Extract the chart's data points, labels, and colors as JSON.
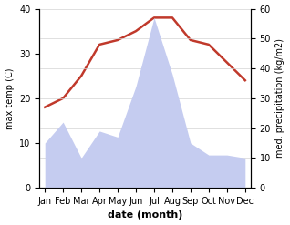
{
  "months": [
    "Jan",
    "Feb",
    "Mar",
    "Apr",
    "May",
    "Jun",
    "Jul",
    "Aug",
    "Sep",
    "Oct",
    "Nov",
    "Dec"
  ],
  "temperature": [
    18,
    20,
    25,
    32,
    33,
    35,
    38,
    38,
    33,
    32,
    28,
    24
  ],
  "precipitation": [
    15,
    22,
    10,
    19,
    17,
    34,
    57,
    38,
    15,
    11,
    11,
    10
  ],
  "temp_color": "#c0392b",
  "precip_fill_color": "#c5ccf0",
  "temp_ylim": [
    0,
    40
  ],
  "precip_ylim": [
    0,
    60
  ],
  "xlabel": "date (month)",
  "ylabel_left": "max temp (C)",
  "ylabel_right": "med. precipitation (kg/m2)",
  "temp_yticks": [
    0,
    10,
    20,
    30,
    40
  ],
  "precip_yticks": [
    0,
    10,
    20,
    30,
    40,
    50,
    60
  ],
  "bg_color": "#ffffff"
}
